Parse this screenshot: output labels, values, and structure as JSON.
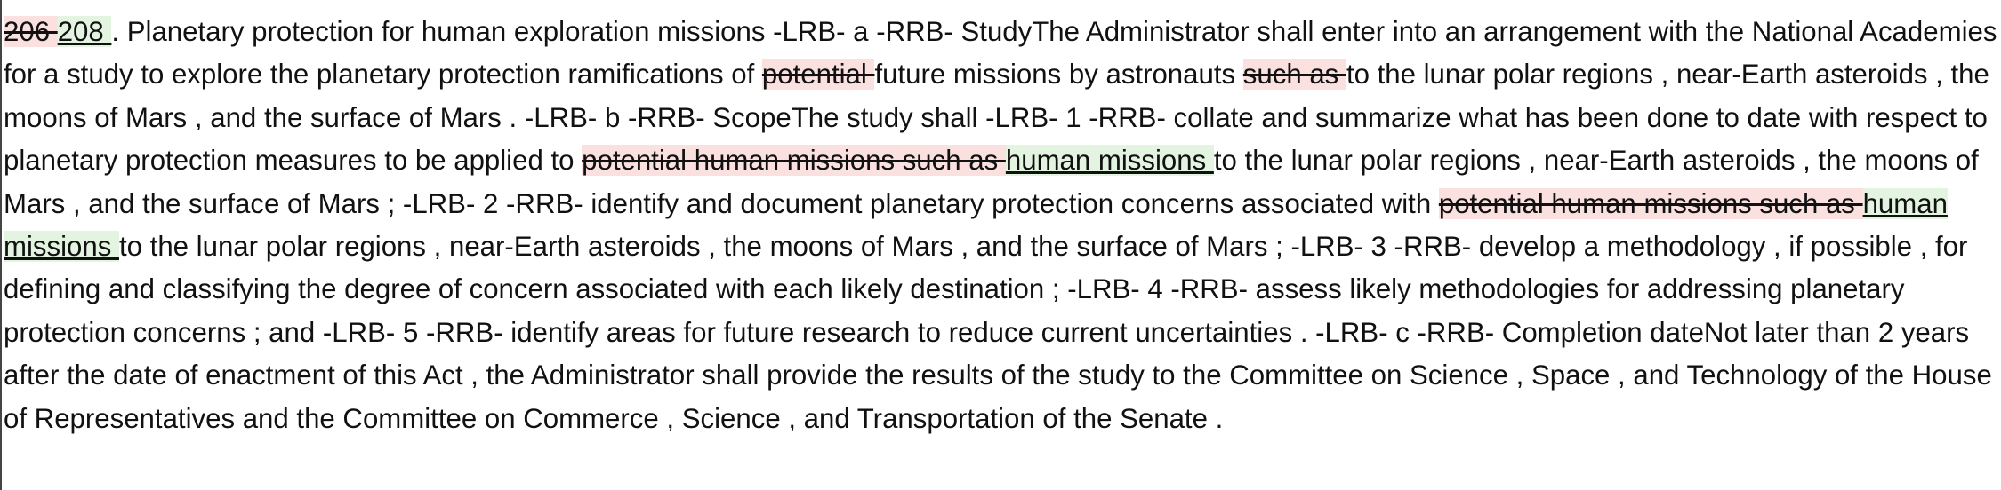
{
  "document": {
    "colors": {
      "deleted_bg": "#fbe0e0",
      "inserted_bg": "#e3f5e1",
      "text": "#111111"
    },
    "segments": [
      {
        "type": "del",
        "text": "206 "
      },
      {
        "type": "ins",
        "text": "208 "
      },
      {
        "type": "text",
        "text": ". Planetary protection for human exploration missions -LRB- a -RRB- StudyThe Administrator shall enter into an arrangement with the National Academies for a study to explore the planetary protection ramifications of "
      },
      {
        "type": "del",
        "text": "potential "
      },
      {
        "type": "text",
        "text": "future missions by astronauts "
      },
      {
        "type": "del",
        "text": "such as "
      },
      {
        "type": "text",
        "text": "to the lunar polar regions , near-Earth asteroids , the moons of Mars , and the surface of Mars . -LRB- b -RRB- ScopeThe study shall -LRB- 1 -RRB- collate and summarize what has been done to date with respect to planetary protection measures to be applied to "
      },
      {
        "type": "del",
        "text": "potential human missions such as "
      },
      {
        "type": "ins",
        "text": "human missions "
      },
      {
        "type": "text",
        "text": "to the lunar polar regions , near-Earth asteroids , the moons of Mars , and the surface of Mars ; -LRB- 2 -RRB- identify and document planetary protection concerns associated with "
      },
      {
        "type": "del",
        "text": "potential human missions such as "
      },
      {
        "type": "ins",
        "text": "human missions "
      },
      {
        "type": "text",
        "text": "to the lunar polar regions , near-Earth asteroids , the moons of Mars , and the surface of Mars ; -LRB- 3 -RRB- develop a methodology , if possible , for defining and classifying the degree of concern associated with each likely destination ; -LRB- 4 -RRB- assess likely methodologies for addressing planetary protection concerns ; and -LRB- 5 -RRB- identify areas for future research to reduce current uncertainties . -LRB- c -RRB- Completion dateNot later than 2 years after the date of enactment of this Act , the Administrator shall provide the results of the study to the Committee on Science , Space , and Technology of the House of Representatives and the Committee on Commerce , Science , and Transportation of the Senate ."
      }
    ]
  }
}
